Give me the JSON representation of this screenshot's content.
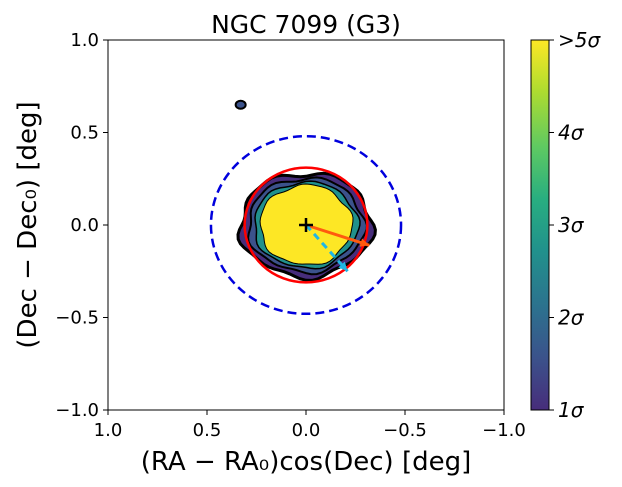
{
  "chart_data": {
    "type": "contour",
    "title": "NGC 7099 (G3)",
    "xlabel": "(RA − RA₀)cos(Dec) [deg]",
    "ylabel": "(Dec − Dec₀) [deg]",
    "xlim": [
      1.0,
      -1.0
    ],
    "ylim": [
      -1.0,
      1.0
    ],
    "xticks": [
      1.0,
      0.5,
      0.0,
      -0.5,
      -1.0
    ],
    "xtick_labels": [
      "1.0",
      "0.5",
      "0.0",
      "−0.5",
      "−1.0"
    ],
    "yticks": [
      1.0,
      0.5,
      0.0,
      -0.5,
      -1.0
    ],
    "ytick_labels": [
      "1.0",
      "0.5",
      "0.0",
      "−0.5",
      "−1.0"
    ],
    "colorbar": {
      "ticks": [
        1,
        2,
        3,
        4,
        5
      ],
      "tick_labels": [
        "1σ",
        "2σ",
        "3σ",
        "4σ",
        ">5σ"
      ],
      "colors": [
        "#472d7b",
        "#3b528b",
        "#2c728e",
        "#21918c",
        "#28ae80",
        "#5ec962",
        "#addc30",
        "#fde725"
      ]
    },
    "tidal_radius_deg": 0.31,
    "outer_radius_deg": 0.48,
    "center_marker": {
      "x": 0.0,
      "y": 0.0,
      "symbol": "+"
    },
    "vectors": [
      {
        "name": "proper-motion",
        "color": "#ff5a0e",
        "style": "solid",
        "from": [
          0.0,
          0.0
        ],
        "to": [
          -0.32,
          -0.11
        ]
      },
      {
        "name": "orbit-direction",
        "color": "#1fb6e6",
        "style": "dashed",
        "from": [
          0.0,
          0.0
        ],
        "to": [
          -0.21,
          -0.25
        ]
      }
    ],
    "detached_feature": {
      "x": 0.33,
      "y": 0.65
    }
  }
}
